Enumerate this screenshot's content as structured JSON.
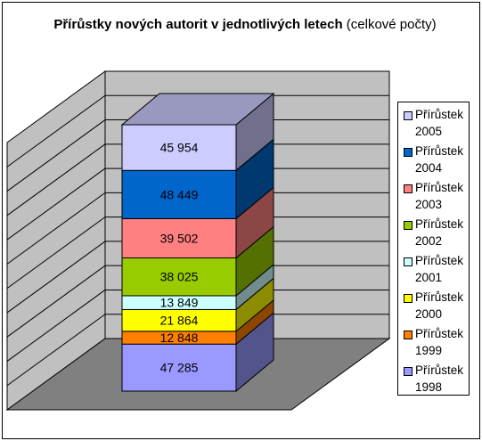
{
  "title_bold": "Přírůstky nových autorit v jednotlivých letech",
  "title_rest": " (celkové počty)",
  "colors": {
    "wall": "#c0c0c0",
    "floor": "#808080",
    "gridline": "#000000"
  },
  "chart_data": {
    "type": "bar",
    "subtype": "stacked-3d",
    "categories": [
      ""
    ],
    "series": [
      {
        "name": "Přírůstek 1998",
        "values": [
          47285
        ],
        "label": "47 285",
        "color": "#9999ff"
      },
      {
        "name": "Přírůstek 1999",
        "values": [
          12848
        ],
        "label": "12 848",
        "color": "#ff8000"
      },
      {
        "name": "Přírůstek 2000",
        "values": [
          21864
        ],
        "label": "21 864",
        "color": "#ffff00"
      },
      {
        "name": "Přírůstek 2001",
        "values": [
          13849
        ],
        "label": "13 849",
        "color": "#ccffff"
      },
      {
        "name": "Přírůstek 2002",
        "values": [
          38025
        ],
        "label": "38 025",
        "color": "#99cc00"
      },
      {
        "name": "Přírůstek 2003",
        "values": [
          39502
        ],
        "label": "39 502",
        "color": "#ff8080"
      },
      {
        "name": "Přírůstek 2004",
        "values": [
          48449
        ],
        "label": "48 449",
        "color": "#0066cc"
      },
      {
        "name": "Přírůstek 2005",
        "values": [
          45954
        ],
        "label": "45 954",
        "color": "#ccccff"
      }
    ],
    "legend": [
      "Přírůstek 2005",
      "Přírůstek 2004",
      "Přírůstek 2003",
      "Přírůstek 2002",
      "Přírůstek 2001",
      "Přírůstek 2000",
      "Přírůstek 1999",
      "Přírůstek 1998"
    ],
    "legend_position": "right",
    "grid": true
  }
}
